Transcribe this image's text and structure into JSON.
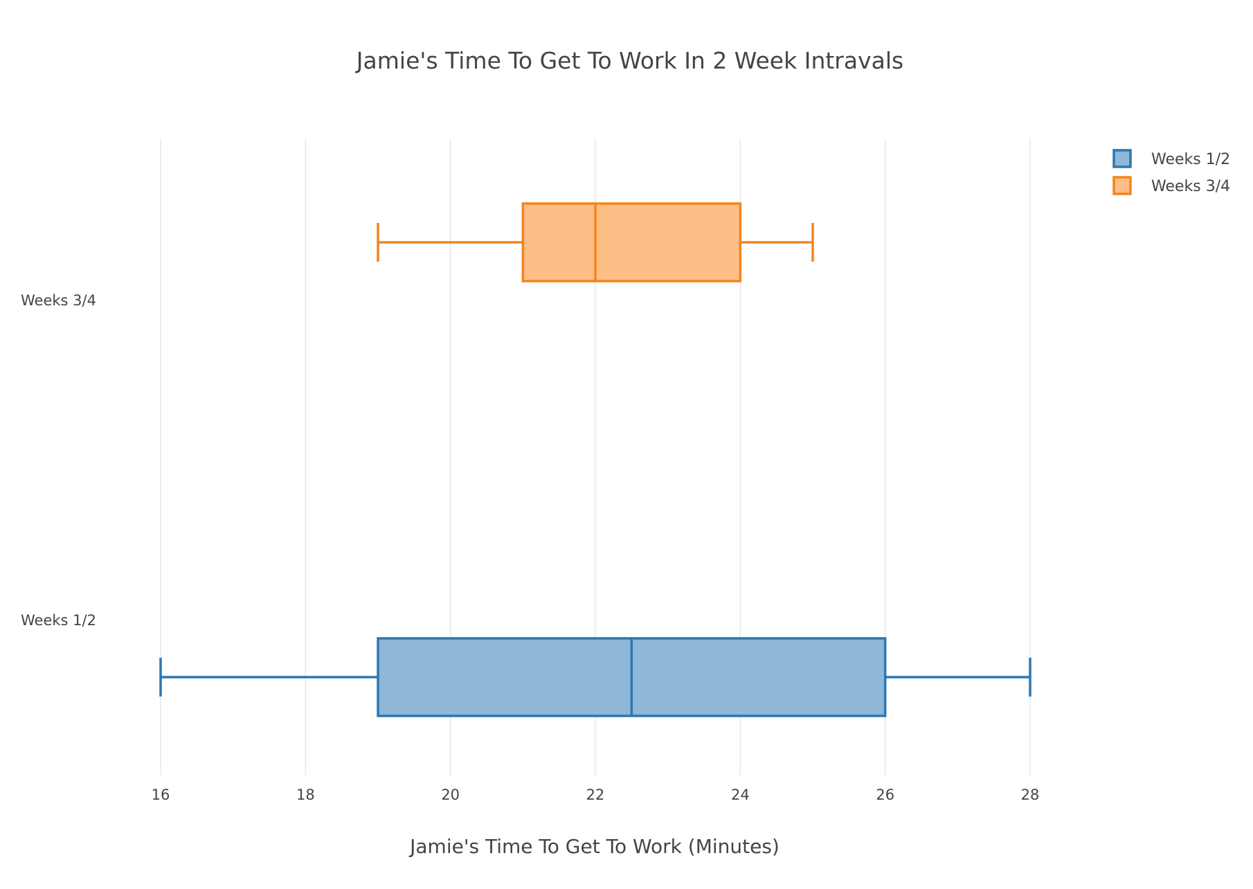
{
  "chart_data": {
    "type": "box",
    "orientation": "horizontal",
    "title": "Jamie's Time To Get To Work In 2 Week Intravals",
    "xlabel": "Jamie's Time To Get To Work (Minutes)",
    "ylabel": "",
    "xlim": [
      16,
      29
    ],
    "xticks": [
      16,
      18,
      20,
      22,
      24,
      26,
      28
    ],
    "xtick_labels": [
      "16",
      "18",
      "20",
      "22",
      "24",
      "26",
      "28"
    ],
    "categories": [
      "Weeks 1/2",
      "Weeks 3/4"
    ],
    "grid": "vertical",
    "legend_position": "top-right",
    "series": [
      {
        "name": "Weeks 1/2",
        "min": 16,
        "q1": 19,
        "median": 22.5,
        "q3": 26,
        "max": 28,
        "line_color": "#2b77b1",
        "fill_color": "#8fb7d8"
      },
      {
        "name": "Weeks 3/4",
        "min": 19,
        "q1": 21,
        "median": 22,
        "q3": 24,
        "max": 25,
        "line_color": "#f2851f",
        "fill_color": "#ffbe86"
      }
    ]
  }
}
